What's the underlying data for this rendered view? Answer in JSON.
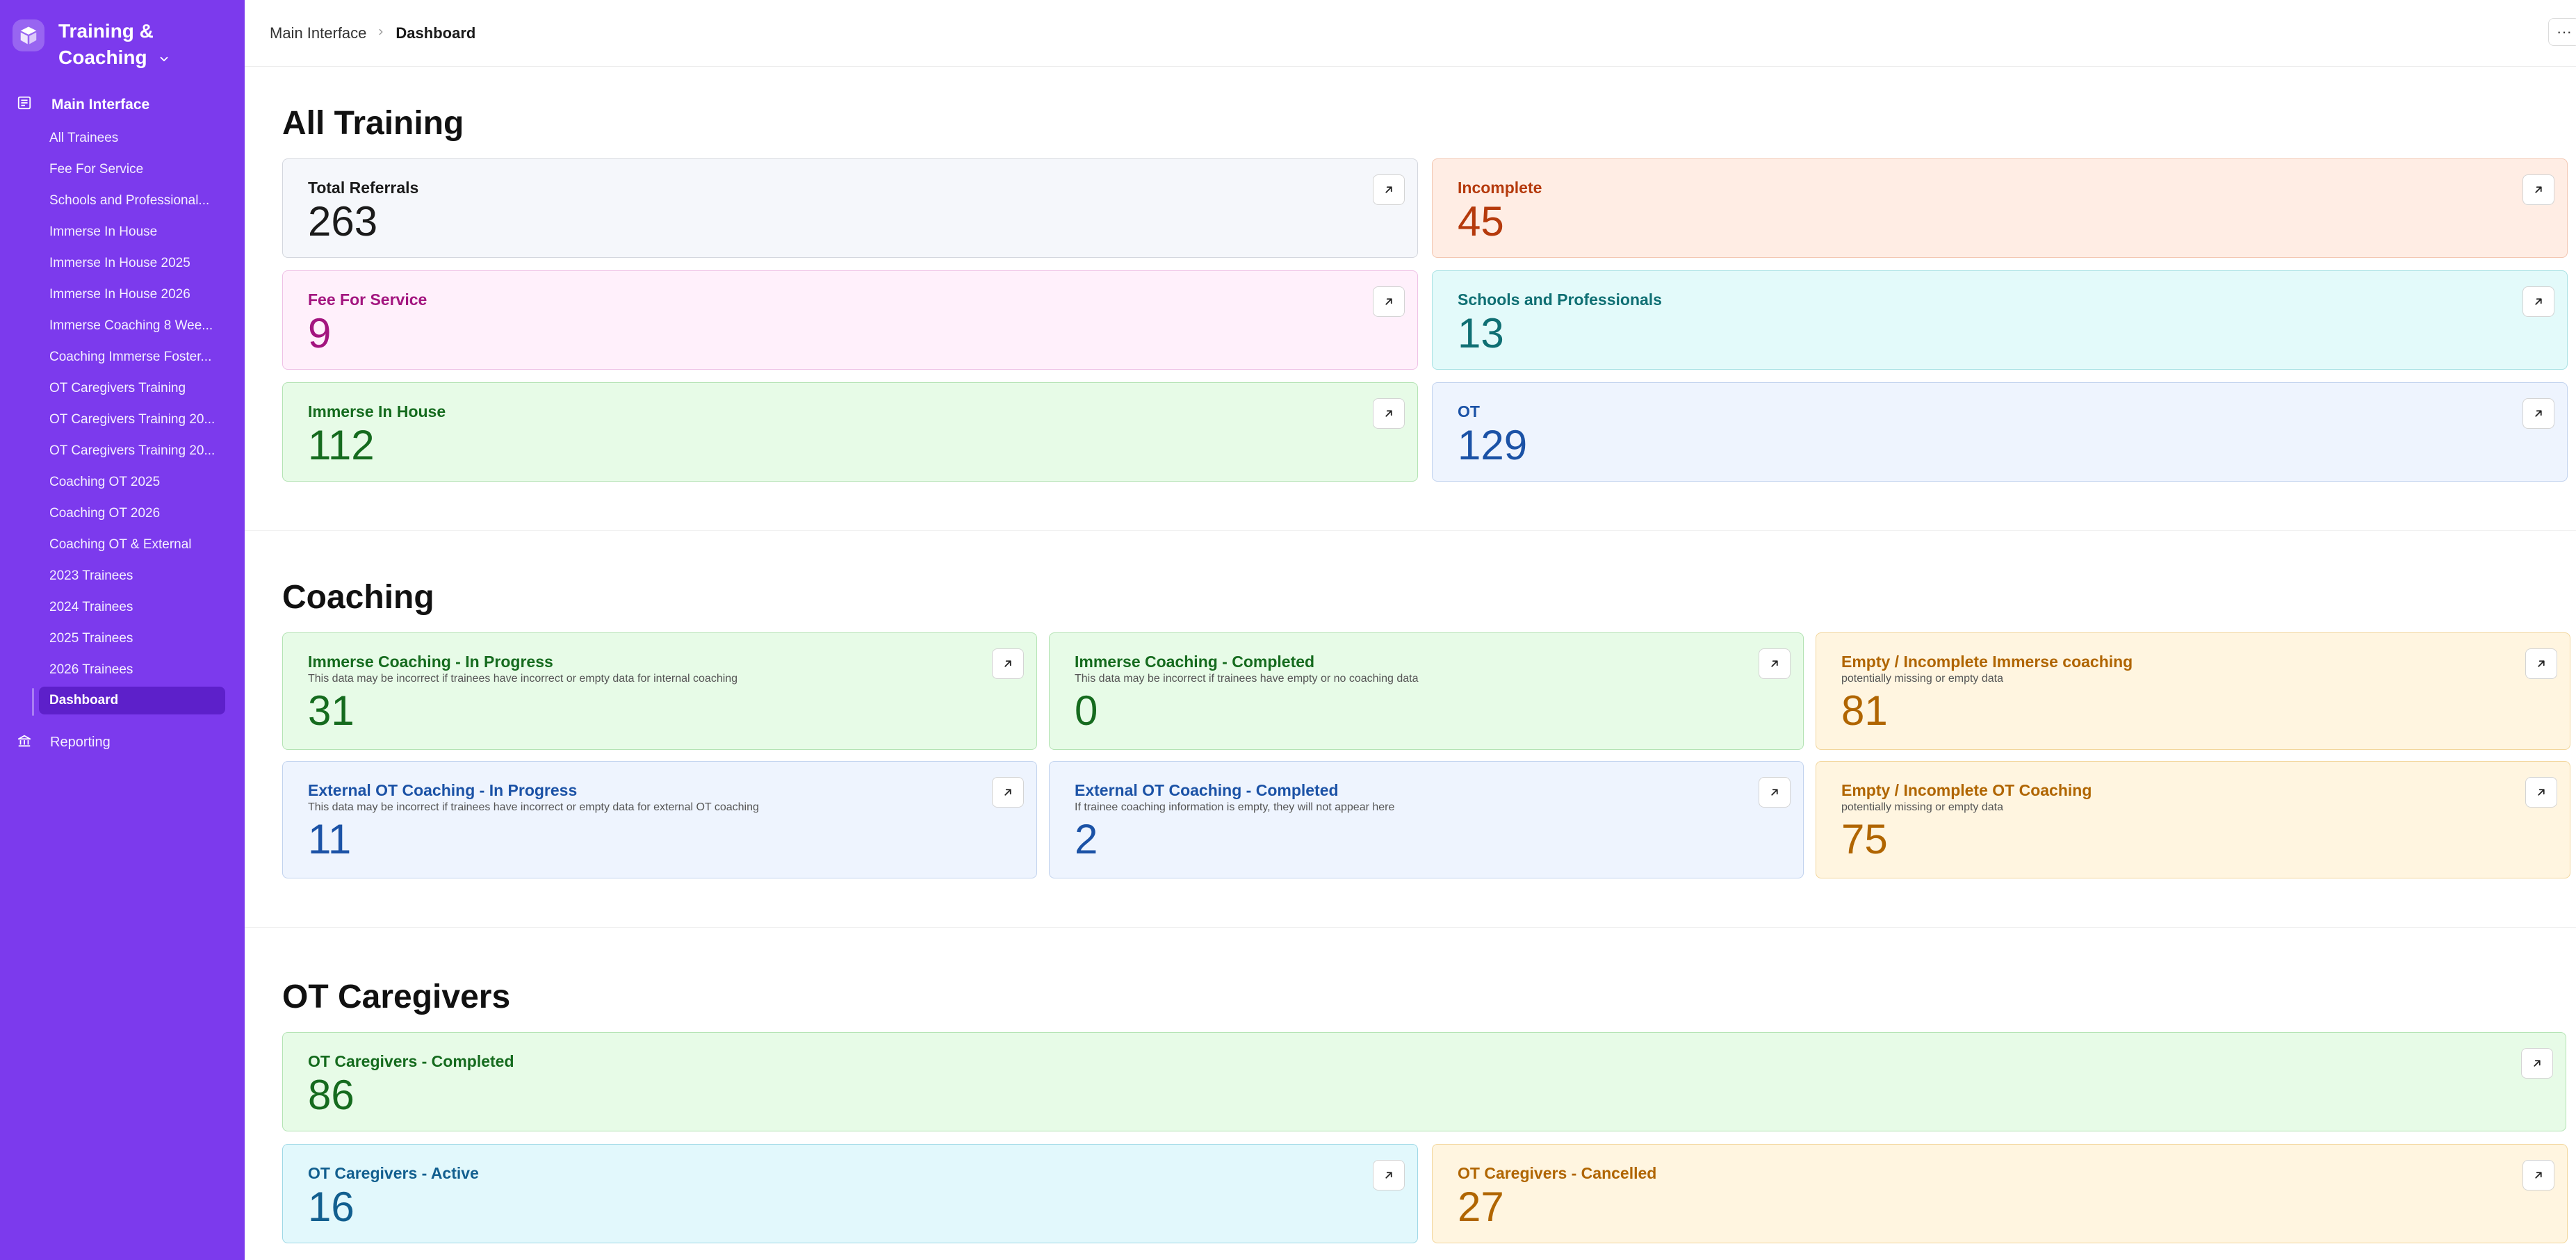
{
  "sidebar": {
    "brand": {
      "line1": "Training &",
      "line2": "Coaching"
    },
    "main_interface_label": "Main Interface",
    "items": [
      "All Trainees",
      "Fee For Service",
      "Schools and Professional...",
      "Immerse In House",
      "Immerse In House 2025",
      "Immerse In House 2026",
      "Immerse Coaching 8 Wee...",
      "Coaching Immerse Foster...",
      "OT Caregivers Training",
      "OT Caregivers Training 20...",
      "OT Caregivers Training 20...",
      "Coaching OT 2025",
      "Coaching OT 2026",
      "Coaching OT & External",
      "2023 Trainees",
      "2024 Trainees",
      "2025 Trainees",
      "2026 Trainees"
    ],
    "active_item": "Dashboard",
    "reporting_label": "Reporting"
  },
  "topbar": {
    "breadcrumb_parent": "Main Interface",
    "breadcrumb_current": "Dashboard",
    "more_label": "···"
  },
  "sections": {
    "all_training": {
      "title": "All Training",
      "cards": [
        {
          "name": "Total Referrals",
          "value": "263"
        },
        {
          "name": "Incomplete",
          "value": "45"
        },
        {
          "name": "Fee For Service",
          "value": "9"
        },
        {
          "name": "Schools and Professionals",
          "value": "13"
        },
        {
          "name": "Immerse In House",
          "value": "112"
        },
        {
          "name": "OT",
          "value": "129"
        }
      ]
    },
    "coaching": {
      "title": "Coaching",
      "cards": [
        {
          "name": "Immerse Coaching - In Progress",
          "note": "This data may be incorrect if trainees have incorrect or empty data for internal coaching",
          "value": "31"
        },
        {
          "name": "Immerse Coaching - Completed",
          "note": "This data may be incorrect if trainees have empty or no coaching data",
          "value": "0"
        },
        {
          "name": "Empty / Incomplete Immerse coaching",
          "note": "potentially missing or empty data",
          "value": "81"
        },
        {
          "name": "External OT Coaching - In Progress",
          "note": "This data may be incorrect if trainees have incorrect or empty data for external OT coaching",
          "value": "11"
        },
        {
          "name": "External OT Coaching - Completed",
          "note": "If trainee coaching information is empty, they will not appear here",
          "value": "2"
        },
        {
          "name": "Empty / Incomplete OT Coaching",
          "note": "potentially missing or empty data",
          "value": "75"
        }
      ]
    },
    "ot_caregivers": {
      "title": "OT Caregivers",
      "cards": [
        {
          "name": "OT Caregivers - Completed",
          "value": "86"
        },
        {
          "name": "OT Caregivers - Active",
          "value": "16"
        },
        {
          "name": "OT Caregivers - Cancelled",
          "value": "27"
        }
      ]
    }
  },
  "colors": {
    "sidebar": "#7c3aed",
    "active_item": "#581cc3"
  },
  "icons": {
    "brand": "cube-logo-icon",
    "main_interface": "interface-icon",
    "reporting": "bank-report-icon",
    "card_open": "arrow-up-right-icon",
    "brand_dropdown": "chevron-down-icon"
  }
}
